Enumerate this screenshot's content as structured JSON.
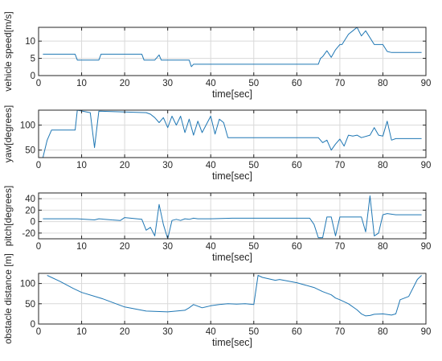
{
  "colors": {
    "line": "#1f77b4",
    "axis": "#262626",
    "grid": "#d9d9d9"
  },
  "chart_data": [
    {
      "type": "line",
      "xlabel": "time[sec]",
      "ylabel": "vehicle speed[m/s]",
      "xlim": [
        0,
        90
      ],
      "ylim": [
        0,
        14
      ],
      "xticks": [
        "0",
        "10",
        "20",
        "30",
        "40",
        "50",
        "60",
        "70",
        "80",
        "90"
      ],
      "yticks": [
        "0",
        "5",
        "10"
      ],
      "yticks_values": [
        0,
        5,
        10
      ],
      "grid": true,
      "x": [
        1,
        8.5,
        9,
        14,
        14.5,
        24,
        24.5,
        27,
        28,
        28.5,
        35,
        35.5,
        36,
        36.5,
        65,
        65.5,
        66,
        67,
        68,
        69,
        70,
        70.5,
        72,
        73,
        74,
        75,
        76,
        78,
        80,
        81,
        82,
        89
      ],
      "y": [
        6.2,
        6.2,
        4.5,
        4.5,
        6.2,
        6.2,
        4.5,
        4.5,
        6,
        4.5,
        4.5,
        2.6,
        3.3,
        3.3,
        3.3,
        5,
        5.5,
        7.2,
        5.3,
        7.5,
        9,
        9,
        12,
        13,
        14,
        11.5,
        13,
        9,
        9,
        7,
        6.7,
        6.7
      ]
    },
    {
      "type": "line",
      "xlabel": "time[sec]",
      "ylabel": "yaw[degrees]",
      "xlim": [
        0,
        90
      ],
      "ylim": [
        35,
        130
      ],
      "xticks": [
        "0",
        "10",
        "20",
        "30",
        "40",
        "50",
        "60",
        "70",
        "80",
        "90"
      ],
      "yticks": [
        "50",
        "100"
      ],
      "yticks_values": [
        50,
        100
      ],
      "grid": true,
      "x": [
        1,
        2,
        3,
        8.5,
        9,
        12,
        13,
        14,
        25,
        26,
        27,
        28,
        29,
        30,
        31,
        32,
        33,
        34,
        35,
        36,
        37,
        38,
        40,
        41,
        42,
        43,
        44,
        45,
        65,
        66,
        67,
        68,
        69,
        70,
        71,
        72,
        73,
        74,
        75,
        77,
        78,
        79,
        80,
        81,
        82,
        83,
        89
      ],
      "y": [
        35,
        70,
        90,
        90,
        130,
        125,
        55,
        128,
        125,
        122,
        115,
        105,
        115,
        95,
        118,
        100,
        118,
        85,
        112,
        80,
        108,
        85,
        118,
        82,
        112,
        105,
        75,
        75,
        75,
        65,
        70,
        50,
        62,
        72,
        58,
        80,
        78,
        80,
        75,
        80,
        95,
        80,
        78,
        108,
        70,
        73,
        73
      ]
    },
    {
      "type": "line",
      "xlabel": "time[sec]",
      "ylabel": "pitch[degrees]",
      "xlim": [
        0,
        90
      ],
      "ylim": [
        -30,
        50
      ],
      "xticks": [
        "0",
        "10",
        "20",
        "30",
        "40",
        "50",
        "60",
        "70",
        "80",
        "90"
      ],
      "yticks": [
        "-20",
        "0",
        "20",
        "40"
      ],
      "yticks_values": [
        -20,
        0,
        20,
        40
      ],
      "grid": true,
      "x": [
        1,
        9,
        13,
        14,
        17,
        19,
        20,
        24,
        25,
        26,
        27,
        28,
        29,
        30,
        31,
        32,
        33,
        34,
        35,
        36,
        37,
        40,
        45,
        50,
        63,
        64,
        65,
        66,
        67,
        68,
        69,
        70,
        71,
        72,
        75,
        76,
        77,
        78,
        79,
        80,
        81,
        83,
        89
      ],
      "y": [
        5,
        5,
        3,
        5,
        3,
        2,
        7,
        4,
        -15,
        -10,
        -25,
        30,
        -5,
        -30,
        2,
        4,
        2,
        5,
        4,
        6,
        5,
        5,
        6,
        6,
        6,
        -5,
        -28,
        -28,
        8,
        8,
        -25,
        8,
        8,
        8,
        8,
        -18,
        45,
        -25,
        -20,
        12,
        14,
        12,
        12
      ]
    },
    {
      "type": "line",
      "xlabel": "time[sec]",
      "ylabel": "obstacle distance [m]",
      "xlim": [
        0,
        90
      ],
      "ylim": [
        0,
        125
      ],
      "xticks": [
        "0",
        "10",
        "20",
        "30",
        "40",
        "50",
        "60",
        "70",
        "80",
        "90"
      ],
      "yticks": [
        "0",
        "50",
        "100"
      ],
      "yticks_values": [
        0,
        50,
        100
      ],
      "grid": true,
      "x": [
        2,
        5,
        8,
        10,
        15,
        20,
        25,
        30,
        34,
        35,
        36,
        38,
        40,
        42,
        44,
        46,
        48,
        50,
        51,
        52,
        55,
        56,
        58,
        60,
        62,
        64,
        66,
        68,
        69,
        70,
        72,
        74,
        75,
        76,
        77,
        78,
        80,
        82,
        83,
        84,
        86,
        88,
        89
      ],
      "y": [
        120,
        105,
        88,
        78,
        62,
        42,
        32,
        30,
        34,
        40,
        48,
        40,
        45,
        48,
        50,
        49,
        50,
        48,
        120,
        115,
        108,
        110,
        106,
        102,
        96,
        90,
        80,
        72,
        64,
        60,
        50,
        35,
        25,
        20,
        21,
        24,
        25,
        22,
        25,
        60,
        68,
        110,
        120
      ]
    }
  ]
}
